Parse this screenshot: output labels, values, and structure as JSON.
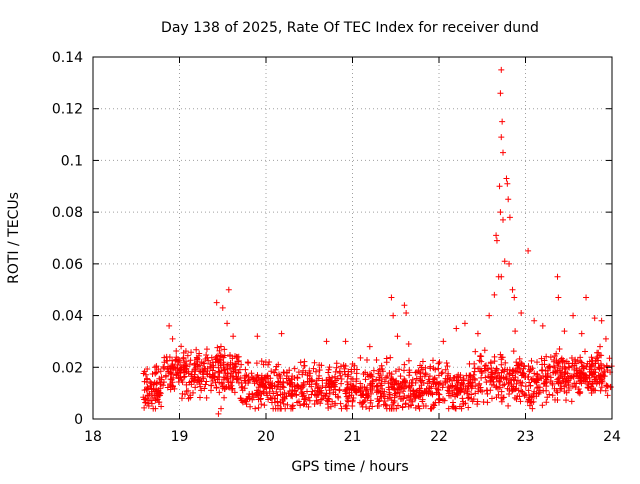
{
  "chart_data": {
    "type": "scatter",
    "title": "Day 138 of 2025, Rate Of TEC Index for receiver dund",
    "xlabel": "GPS time / hours",
    "ylabel": "ROTI / TECUs",
    "xlim": [
      18,
      24
    ],
    "ylim": [
      0,
      0.14
    ],
    "xticks": [
      18,
      19,
      20,
      21,
      22,
      23,
      24
    ],
    "xtick_labels": [
      "18",
      "19",
      "20",
      "21",
      "22",
      "23",
      "24"
    ],
    "yticks": [
      0,
      0.02,
      0.04,
      0.06,
      0.08,
      0.1,
      0.12,
      0.14
    ],
    "ytick_labels": [
      "0",
      "0.02",
      "0.04",
      "0.06",
      "0.08",
      "0.1",
      "0.12",
      "0.14"
    ],
    "grid": true,
    "marker": "+",
    "series": [
      {
        "name": "ROTI",
        "color": "#ff0000",
        "points": [
          [
            22.72,
            0.135
          ],
          [
            22.71,
            0.126
          ],
          [
            22.73,
            0.115
          ],
          [
            22.72,
            0.109
          ],
          [
            22.74,
            0.103
          ],
          [
            22.78,
            0.093
          ],
          [
            22.79,
            0.091
          ],
          [
            22.7,
            0.09
          ],
          [
            22.8,
            0.085
          ],
          [
            22.71,
            0.08
          ],
          [
            22.82,
            0.078
          ],
          [
            22.74,
            0.077
          ],
          [
            22.66,
            0.071
          ],
          [
            22.67,
            0.069
          ],
          [
            23.03,
            0.065
          ],
          [
            22.76,
            0.061
          ],
          [
            22.81,
            0.06
          ],
          [
            22.72,
            0.055
          ],
          [
            22.69,
            0.055
          ],
          [
            22.85,
            0.05
          ],
          [
            22.87,
            0.047
          ],
          [
            22.64,
            0.048
          ],
          [
            23.37,
            0.055
          ],
          [
            23.38,
            0.047
          ],
          [
            23.7,
            0.047
          ],
          [
            19.57,
            0.05
          ],
          [
            19.43,
            0.045
          ],
          [
            19.5,
            0.043
          ],
          [
            21.45,
            0.047
          ],
          [
            21.6,
            0.044
          ],
          [
            21.47,
            0.04
          ],
          [
            21.62,
            0.041
          ],
          [
            22.3,
            0.037
          ],
          [
            22.2,
            0.035
          ],
          [
            22.58,
            0.04
          ],
          [
            22.95,
            0.041
          ],
          [
            23.1,
            0.038
          ],
          [
            23.55,
            0.04
          ],
          [
            23.88,
            0.038
          ],
          [
            23.8,
            0.039
          ],
          [
            18.88,
            0.036
          ],
          [
            18.92,
            0.031
          ],
          [
            19.55,
            0.037
          ],
          [
            19.62,
            0.032
          ],
          [
            19.9,
            0.032
          ],
          [
            20.18,
            0.033
          ],
          [
            20.7,
            0.03
          ],
          [
            20.92,
            0.03
          ],
          [
            21.2,
            0.028
          ],
          [
            21.52,
            0.032
          ],
          [
            21.65,
            0.029
          ],
          [
            22.05,
            0.03
          ],
          [
            22.45,
            0.033
          ],
          [
            22.88,
            0.034
          ],
          [
            23.2,
            0.036
          ],
          [
            23.45,
            0.034
          ],
          [
            23.65,
            0.033
          ],
          [
            23.93,
            0.031
          ],
          [
            19.45,
            0.002
          ],
          [
            19.48,
            0.004
          ]
        ]
      }
    ],
    "dense_band": {
      "description": "dense cloud of points forming the baseline activity",
      "x_range": [
        18.58,
        24.0
      ],
      "y_range": [
        0.005,
        0.025
      ],
      "typical": 0.012
    }
  }
}
